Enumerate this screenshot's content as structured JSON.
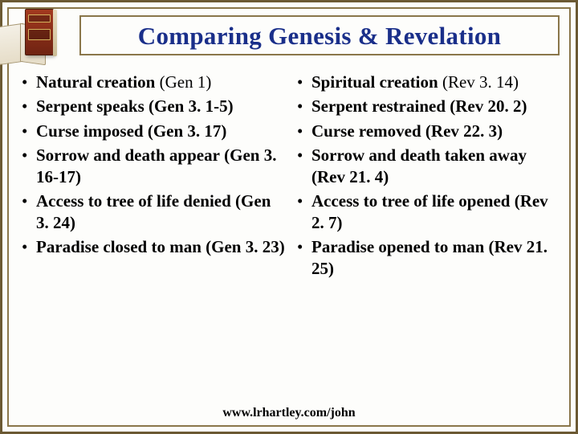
{
  "title": "Comparing Genesis & Revelation",
  "colors": {
    "title_color": "#1a2f8a",
    "border_color": "#6b5933",
    "text_color": "#000000",
    "background": "#fdfdfb"
  },
  "left": {
    "items": [
      {
        "heading": "Natural creation",
        "ref": "(Gen 1)"
      },
      {
        "heading": "Serpent speaks",
        "ref": "(Gen 3. 1-5)"
      },
      {
        "heading": "Curse imposed",
        "ref": "(Gen 3. 17)"
      },
      {
        "heading": "Sorrow and death appear",
        "ref": "(Gen 3. 16-17)"
      },
      {
        "heading": "Access to tree of life denied",
        "ref": "(Gen 3. 24)"
      },
      {
        "heading": "Paradise closed to man",
        "ref": "(Gen 3. 23)"
      }
    ]
  },
  "right": {
    "items": [
      {
        "heading": "Spiritual creation",
        "ref": "(Rev 3. 14)"
      },
      {
        "heading": "Serpent restrained",
        "ref": "(Rev 20. 2)"
      },
      {
        "heading": "Curse removed",
        "ref": "(Rev 22. 3)"
      },
      {
        "heading": "Sorrow and death taken away",
        "ref": "(Rev 21. 4)"
      },
      {
        "heading": "Access to tree of life opened",
        "ref": "(Rev 2. 7)"
      },
      {
        "heading": "Paradise opened to man",
        "ref": "(Rev 21. 25)"
      }
    ]
  },
  "footer": "www.lrhartley.com/john"
}
